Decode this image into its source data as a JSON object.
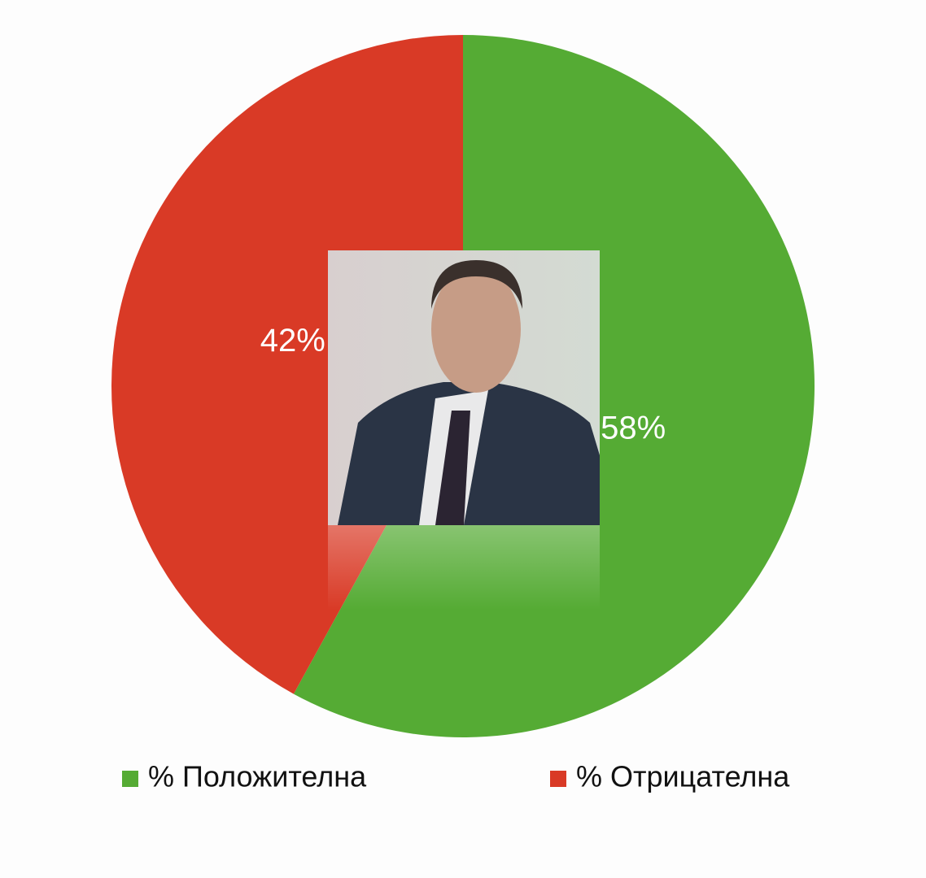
{
  "chart_data": {
    "type": "pie",
    "categories": [
      "% Положителна",
      "% Отрицателна"
    ],
    "values": [
      58,
      42
    ],
    "value_labels": [
      "58%",
      "42%"
    ],
    "colors": [
      "#55ab34",
      "#d93a26"
    ]
  }
}
